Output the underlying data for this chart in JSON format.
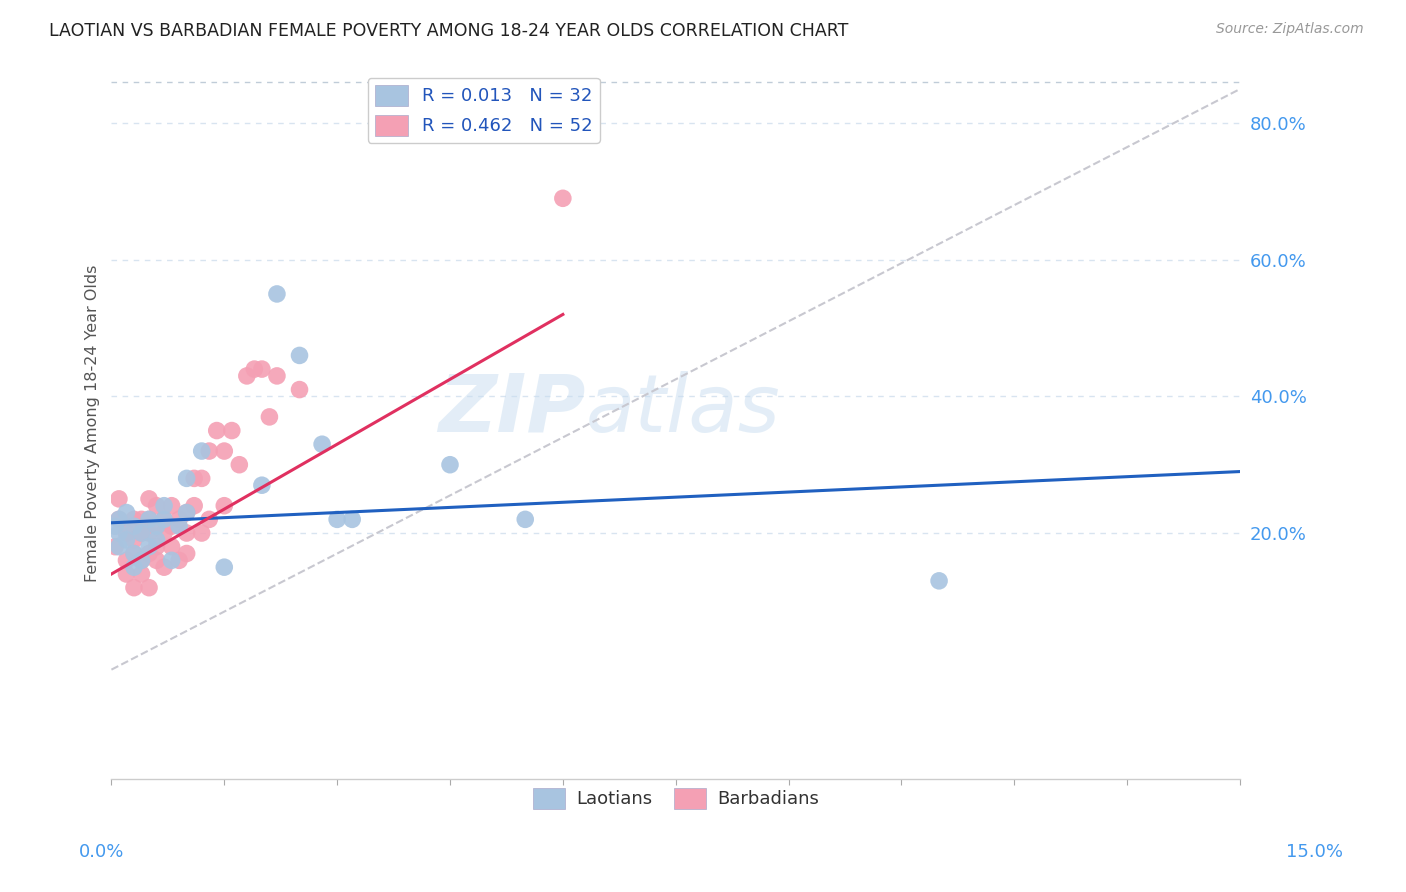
{
  "title": "LAOTIAN VS BARBADIAN FEMALE POVERTY AMONG 18-24 YEAR OLDS CORRELATION CHART",
  "source": "Source: ZipAtlas.com",
  "ylabel": "Female Poverty Among 18-24 Year Olds",
  "right_yticks": [
    0.2,
    0.4,
    0.6,
    0.8
  ],
  "right_yticklabels": [
    "20.0%",
    "40.0%",
    "60.0%",
    "80.0%"
  ],
  "xlim": [
    0.0,
    0.15
  ],
  "ylim": [
    -0.16,
    0.88
  ],
  "laotian_R": "0.013",
  "laotian_N": "32",
  "barbadian_R": "0.462",
  "barbadian_N": "52",
  "laotian_color": "#a8c4e0",
  "barbadian_color": "#f4a0b4",
  "laotian_trendline_color": "#2060c0",
  "barbadian_trendline_color": "#e03060",
  "diagonal_color": "#c8c8d0",
  "watermark_zip": "ZIP",
  "watermark_atlas": "atlas",
  "legend_label_laotian": "Laotians",
  "legend_label_barbadian": "Barbadians",
  "laotian_x": [
    0.0005,
    0.001,
    0.001,
    0.001,
    0.002,
    0.002,
    0.003,
    0.003,
    0.003,
    0.004,
    0.004,
    0.005,
    0.005,
    0.006,
    0.006,
    0.007,
    0.007,
    0.008,
    0.009,
    0.01,
    0.01,
    0.012,
    0.015,
    0.02,
    0.022,
    0.025,
    0.028,
    0.03,
    0.032,
    0.045,
    0.055,
    0.11
  ],
  "laotian_y": [
    0.21,
    0.22,
    0.2,
    0.18,
    0.23,
    0.19,
    0.21,
    0.17,
    0.15,
    0.2,
    0.16,
    0.22,
    0.18,
    0.21,
    0.19,
    0.22,
    0.24,
    0.16,
    0.21,
    0.23,
    0.28,
    0.32,
    0.15,
    0.27,
    0.55,
    0.46,
    0.33,
    0.22,
    0.22,
    0.3,
    0.22,
    0.13
  ],
  "barbadian_x": [
    0.0005,
    0.001,
    0.001,
    0.002,
    0.002,
    0.002,
    0.003,
    0.003,
    0.003,
    0.003,
    0.004,
    0.004,
    0.004,
    0.004,
    0.005,
    0.005,
    0.005,
    0.005,
    0.005,
    0.006,
    0.006,
    0.006,
    0.006,
    0.007,
    0.007,
    0.007,
    0.008,
    0.008,
    0.008,
    0.009,
    0.009,
    0.01,
    0.01,
    0.01,
    0.011,
    0.011,
    0.012,
    0.012,
    0.013,
    0.013,
    0.014,
    0.015,
    0.015,
    0.016,
    0.017,
    0.018,
    0.019,
    0.02,
    0.021,
    0.022,
    0.025,
    0.06
  ],
  "barbadian_y": [
    0.18,
    0.22,
    0.25,
    0.2,
    0.16,
    0.14,
    0.19,
    0.22,
    0.17,
    0.12,
    0.2,
    0.22,
    0.16,
    0.14,
    0.2,
    0.22,
    0.25,
    0.17,
    0.12,
    0.18,
    0.21,
    0.24,
    0.16,
    0.2,
    0.22,
    0.15,
    0.21,
    0.24,
    0.18,
    0.22,
    0.16,
    0.2,
    0.23,
    0.17,
    0.28,
    0.24,
    0.28,
    0.2,
    0.32,
    0.22,
    0.35,
    0.32,
    0.24,
    0.35,
    0.3,
    0.43,
    0.44,
    0.44,
    0.37,
    0.43,
    0.41,
    0.69
  ],
  "grid_color": "#d8e4f0",
  "grid_dash": [
    4,
    4
  ],
  "top_dash_color": "#c0ccd8",
  "scatter_size": 160,
  "lao_trendline_intercept": 0.215,
  "lao_trendline_slope": 0.5,
  "barb_trendline_x0": 0.0,
  "barb_trendline_y0": 0.14,
  "barb_trendline_x1": 0.06,
  "barb_trendline_y1": 0.52
}
